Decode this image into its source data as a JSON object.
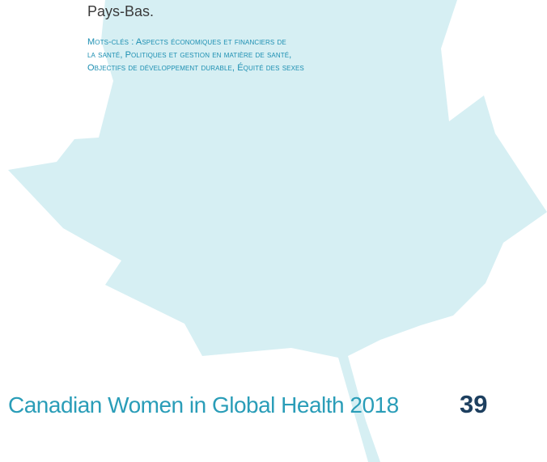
{
  "body": {
    "last_line": "Pays-Bas."
  },
  "keywords": {
    "lines": [
      "Mots-clés : Aspects économiques et financiers de",
      "la santé, Politiques et gestion en matière de santé,",
      "Objectifs de développement durable, Équité des sexes"
    ]
  },
  "footer": {
    "title": "Canadian Women in Global Health 2018",
    "page_number": "39"
  }
}
